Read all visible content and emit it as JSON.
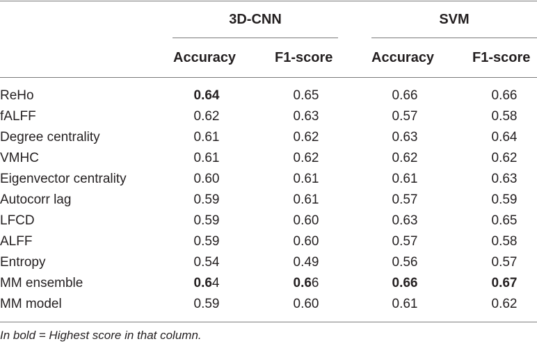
{
  "table": {
    "groups": [
      {
        "label": "3D-CNN"
      },
      {
        "label": "SVM"
      }
    ],
    "columns": [
      "Accuracy",
      "F1-score",
      "Accuracy",
      "F1-score"
    ],
    "rows": [
      {
        "label": "ReHo",
        "values": [
          {
            "whole": "0.64",
            "bold": "0.64",
            "rest": ""
          },
          {
            "whole": "0.65",
            "bold": "",
            "rest": "0.65"
          },
          {
            "whole": "0.66",
            "bold": "",
            "rest": "0.66"
          },
          {
            "whole": "0.66",
            "bold": "",
            "rest": "0.66"
          }
        ]
      },
      {
        "label": "fALFF",
        "values": [
          {
            "whole": "0.62",
            "bold": "",
            "rest": "0.62"
          },
          {
            "whole": "0.63",
            "bold": "",
            "rest": "0.63"
          },
          {
            "whole": "0.57",
            "bold": "",
            "rest": "0.57"
          },
          {
            "whole": "0.58",
            "bold": "",
            "rest": "0.58"
          }
        ]
      },
      {
        "label": "Degree centrality",
        "values": [
          {
            "whole": "0.61",
            "bold": "",
            "rest": "0.61"
          },
          {
            "whole": "0.62",
            "bold": "",
            "rest": "0.62"
          },
          {
            "whole": "0.63",
            "bold": "",
            "rest": "0.63"
          },
          {
            "whole": "0.64",
            "bold": "",
            "rest": "0.64"
          }
        ]
      },
      {
        "label": "VMHC",
        "values": [
          {
            "whole": "0.61",
            "bold": "",
            "rest": "0.61"
          },
          {
            "whole": "0.62",
            "bold": "",
            "rest": "0.62"
          },
          {
            "whole": "0.62",
            "bold": "",
            "rest": "0.62"
          },
          {
            "whole": "0.62",
            "bold": "",
            "rest": "0.62"
          }
        ]
      },
      {
        "label": "Eigenvector centrality",
        "values": [
          {
            "whole": "0.60",
            "bold": "",
            "rest": "0.60"
          },
          {
            "whole": "0.61",
            "bold": "",
            "rest": "0.61"
          },
          {
            "whole": "0.61",
            "bold": "",
            "rest": "0.61"
          },
          {
            "whole": "0.63",
            "bold": "",
            "rest": "0.63"
          }
        ]
      },
      {
        "label": "Autocorr lag",
        "values": [
          {
            "whole": "0.59",
            "bold": "",
            "rest": "0.59"
          },
          {
            "whole": "0.61",
            "bold": "",
            "rest": "0.61"
          },
          {
            "whole": "0.57",
            "bold": "",
            "rest": "0.57"
          },
          {
            "whole": "0.59",
            "bold": "",
            "rest": "0.59"
          }
        ]
      },
      {
        "label": "LFCD",
        "values": [
          {
            "whole": "0.59",
            "bold": "",
            "rest": "0.59"
          },
          {
            "whole": "0.60",
            "bold": "",
            "rest": "0.60"
          },
          {
            "whole": "0.63",
            "bold": "",
            "rest": "0.63"
          },
          {
            "whole": "0.65",
            "bold": "",
            "rest": "0.65"
          }
        ]
      },
      {
        "label": "ALFF",
        "values": [
          {
            "whole": "0.59",
            "bold": "",
            "rest": "0.59"
          },
          {
            "whole": "0.60",
            "bold": "",
            "rest": "0.60"
          },
          {
            "whole": "0.57",
            "bold": "",
            "rest": "0.57"
          },
          {
            "whole": "0.58",
            "bold": "",
            "rest": "0.58"
          }
        ]
      },
      {
        "label": "Entropy",
        "values": [
          {
            "whole": "0.54",
            "bold": "",
            "rest": "0.54"
          },
          {
            "whole": "0.49",
            "bold": "",
            "rest": "0.49"
          },
          {
            "whole": "0.56",
            "bold": "",
            "rest": "0.56"
          },
          {
            "whole": "0.57",
            "bold": "",
            "rest": "0.57"
          }
        ]
      },
      {
        "label": "MM ensemble",
        "values": [
          {
            "whole": "0.64",
            "bold": "0.6",
            "rest": "4"
          },
          {
            "whole": "0.66",
            "bold": "0.6",
            "rest": "6"
          },
          {
            "whole": "0.66",
            "bold": "0.66",
            "rest": ""
          },
          {
            "whole": "0.67",
            "bold": "0.67",
            "rest": ""
          }
        ]
      },
      {
        "label": "MM model",
        "values": [
          {
            "whole": "0.59",
            "bold": "",
            "rest": "0.59"
          },
          {
            "whole": "0.60",
            "bold": "",
            "rest": "0.60"
          },
          {
            "whole": "0.61",
            "bold": "",
            "rest": "0.61"
          },
          {
            "whole": "0.62",
            "bold": "",
            "rest": "0.62"
          }
        ]
      }
    ],
    "footnote": "In bold = Highest score in that column."
  }
}
